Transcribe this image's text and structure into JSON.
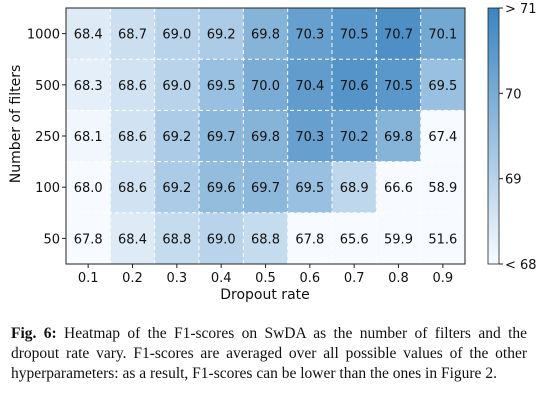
{
  "chart_data": {
    "type": "heatmap",
    "xlabel": "Dropout rate",
    "ylabel": "Number of filters",
    "x_categories": [
      "0.1",
      "0.2",
      "0.3",
      "0.4",
      "0.5",
      "0.6",
      "0.7",
      "0.8",
      "0.9"
    ],
    "y_categories": [
      "1000",
      "500",
      "250",
      "100",
      "50"
    ],
    "values": [
      [
        68.4,
        68.7,
        69.0,
        69.2,
        69.8,
        70.3,
        70.5,
        70.7,
        70.1
      ],
      [
        68.3,
        68.6,
        69.0,
        69.5,
        70.0,
        70.4,
        70.6,
        70.5,
        69.5
      ],
      [
        68.1,
        68.6,
        69.2,
        69.7,
        69.8,
        70.3,
        70.2,
        69.8,
        67.4
      ],
      [
        68.0,
        68.6,
        69.2,
        69.6,
        69.7,
        69.5,
        68.9,
        66.6,
        58.9
      ],
      [
        67.8,
        68.4,
        68.8,
        69.0,
        68.8,
        67.8,
        65.6,
        59.9,
        51.6
      ]
    ],
    "color_range": [
      68,
      71
    ],
    "colorbar_ticks": [
      {
        "value": 71,
        "label": "> 71"
      },
      {
        "value": 70,
        "label": "70"
      },
      {
        "value": 69,
        "label": "69"
      },
      {
        "value": 68,
        "label": "< 68"
      }
    ],
    "color_low": "#f7fbff",
    "color_high": "#3b84c0",
    "grid": "dashed white",
    "colorbar_position": "right"
  },
  "caption": {
    "label": "Fig. 6:",
    "text": " Heatmap of the F1-scores on SwDA as the number of filters and the dropout rate vary. F1-scores are averaged over all possible values of the other hyperparameters: as a result, F1-scores can be lower than the ones in Figure 2."
  }
}
